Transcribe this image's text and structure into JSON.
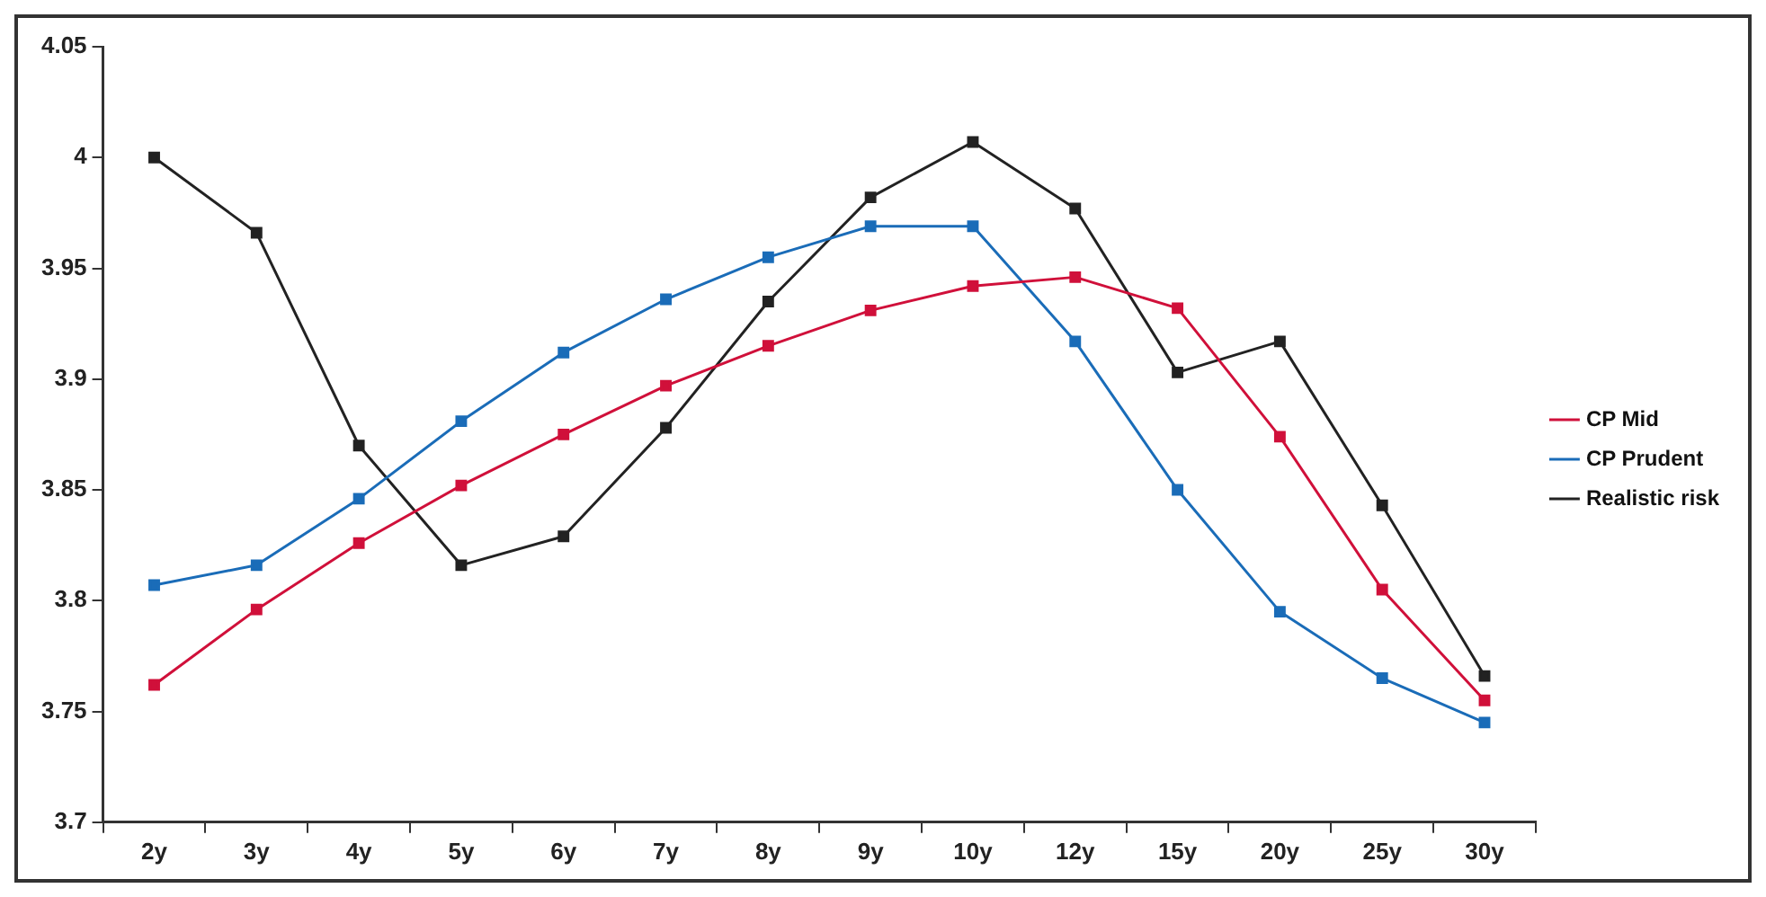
{
  "chart_data": {
    "type": "line",
    "categories": [
      "2y",
      "3y",
      "4y",
      "5y",
      "6y",
      "7y",
      "8y",
      "9y",
      "10y",
      "12y",
      "15y",
      "20y",
      "25y",
      "30y"
    ],
    "series": [
      {
        "name": "CP Mid",
        "color": "#d0103a",
        "values": [
          3.762,
          3.796,
          3.826,
          3.852,
          3.875,
          3.897,
          3.915,
          3.931,
          3.942,
          3.946,
          3.932,
          3.874,
          3.805,
          3.755
        ]
      },
      {
        "name": "CP Prudent",
        "color": "#1a6cb8",
        "values": [
          3.807,
          3.816,
          3.846,
          3.881,
          3.912,
          3.936,
          3.955,
          3.969,
          3.969,
          3.917,
          3.85,
          3.795,
          3.765,
          3.745
        ]
      },
      {
        "name": "Realistic risk",
        "color": "#222222",
        "values": [
          4.0,
          3.966,
          3.87,
          3.816,
          3.829,
          3.878,
          3.935,
          3.982,
          4.007,
          3.977,
          3.903,
          3.917,
          3.843,
          3.766
        ]
      }
    ],
    "ylim": [
      3.7,
      4.05
    ],
    "yticks": [
      {
        "value": 3.7,
        "label": "3.7"
      },
      {
        "value": 3.75,
        "label": "3.75"
      },
      {
        "value": 3.8,
        "label": "3.8"
      },
      {
        "value": 3.85,
        "label": "3.85"
      },
      {
        "value": 3.9,
        "label": "3.9"
      },
      {
        "value": 3.95,
        "label": "3.95"
      },
      {
        "value": 4,
        "label": "4"
      },
      {
        "value": 4.05,
        "label": "4.05"
      }
    ],
    "grid": false,
    "legend": "right",
    "marker": "square",
    "line_style": "solid"
  }
}
